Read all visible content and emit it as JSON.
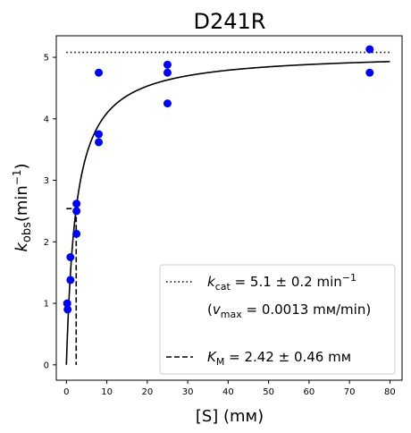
{
  "chart_data": {
    "type": "scatter",
    "title": "D241R",
    "xlabel": "[S] (mм)",
    "ylabel_main": "k",
    "ylabel_sub": "obs",
    "ylabel_unit": "(min",
    "ylabel_sup": "−1",
    "ylabel_close": ")",
    "xlim": [
      -2.5,
      83
    ],
    "ylim": [
      -0.25,
      5.35
    ],
    "xticks": [
      0,
      10,
      20,
      30,
      40,
      50,
      60,
      70,
      80
    ],
    "yticks": [
      0,
      1,
      2,
      3,
      4,
      5
    ],
    "grid": false,
    "legend_position": "lower-right",
    "point_color": "#0000ff",
    "points": [
      {
        "x": 0.2,
        "y": 1.0
      },
      {
        "x": 0.3,
        "y": 0.9
      },
      {
        "x": 1.0,
        "y": 1.75
      },
      {
        "x": 1.0,
        "y": 1.38
      },
      {
        "x": 2.5,
        "y": 2.62
      },
      {
        "x": 2.5,
        "y": 2.5
      },
      {
        "x": 2.5,
        "y": 2.13
      },
      {
        "x": 8.0,
        "y": 4.75
      },
      {
        "x": 8.0,
        "y": 3.75
      },
      {
        "x": 8.0,
        "y": 3.62
      },
      {
        "x": 25.0,
        "y": 4.88
      },
      {
        "x": 25.0,
        "y": 4.75
      },
      {
        "x": 25.0,
        "y": 4.25
      },
      {
        "x": 75.0,
        "y": 5.13
      },
      {
        "x": 75.0,
        "y": 4.75
      }
    ],
    "fit": {
      "kcat": 5.08,
      "km": 2.42,
      "x_from": 0,
      "x_to": 80
    },
    "kcat_line": {
      "y": 5.08,
      "x_from": 0,
      "x_to": 80
    },
    "km_line": {
      "x": 2.42,
      "y": 2.54,
      "x_from": 0
    },
    "legend": {
      "kcat_prefix": "k",
      "kcat_sub": "cat",
      "kcat_value": " = 5.1 ± 0.2 min",
      "kcat_sup": "−1",
      "vmax_open": "(",
      "vmax_main": "v",
      "vmax_sub": "max",
      "vmax_value": " = 0.0013 mм/min)",
      "km_prefix": "K",
      "km_sub": "M",
      "km_value": " = 2.42 ± 0.46 mм"
    }
  }
}
